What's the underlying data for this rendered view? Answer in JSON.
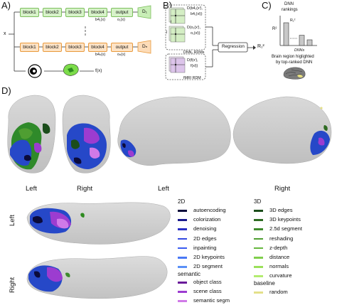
{
  "panels": {
    "a": "A)",
    "b": "B)",
    "c": "C)",
    "d": "D)"
  },
  "panel_a": {
    "input_label": "x",
    "green_blocks": [
      "block1",
      "block2",
      "block3",
      "block4",
      "output"
    ],
    "orange_blocks": [
      "block1",
      "block2",
      "block3",
      "block4",
      "output"
    ],
    "green_feature": "b4₁(x)",
    "green_output": "o₁(x)",
    "green_decoder": "D₁",
    "orange_feature": "b4ₙ(x)",
    "orange_output": "oₙ(x)",
    "orange_decoder": "Dₙ",
    "fmri_output": "f(x)"
  },
  "panel_b": {
    "rdm_top_1": "D(b4₁(xⁱ),",
    "rdm_top_2": "b4₁(xʲ))",
    "rdm_mid_1": "D(o₁(xⁱ),",
    "rdm_mid_2": "o₁(xʲ))",
    "dnn_caption": "DNN₁ RDMs",
    "fmri_1": "D(f(xⁱ),",
    "fmri_2": "f(xʲ))",
    "fmri_caption": "fMRI RDM",
    "regression_label": "Regression",
    "r2_output": "R₁²",
    "i_label": "i",
    "j_label": "j"
  },
  "panel_c": {
    "title_1": "DNN",
    "title_2": "rankings",
    "y_label": "R²",
    "bar_label": "R₁²",
    "x_label": "DNNs",
    "caption_1": "Brain region higlighted",
    "caption_2": "by top-ranked DNN",
    "bar_heights": [
      1.0,
      0.45,
      0.25
    ]
  },
  "panel_d": {
    "top_labels": [
      "Left",
      "Right",
      "Left",
      "Right"
    ],
    "side_labels": [
      "Left",
      "Right"
    ]
  },
  "legend": {
    "col1_head": "2D",
    "col1": [
      {
        "label": "autoencoding",
        "color": "#0b0b3b"
      },
      {
        "label": "colorization",
        "color": "#1a1a8c"
      },
      {
        "label": "denoising",
        "color": "#2a2fc4"
      },
      {
        "label": "2D edges",
        "color": "#3348e0"
      },
      {
        "label": "inpainting",
        "color": "#3a5cf0"
      },
      {
        "label": "2D keypoints",
        "color": "#4a78f5"
      },
      {
        "label": "2D segment",
        "color": "#5a90f7"
      }
    ],
    "col1b_head": "semantic",
    "col1b": [
      {
        "label": "object class",
        "color": "#6a1b9a"
      },
      {
        "label": "scene class",
        "color": "#9c3cd0"
      },
      {
        "label": "semantic segm",
        "color": "#d07ae8"
      }
    ],
    "col2_head": "3D",
    "col2": [
      {
        "label": "3D edges",
        "color": "#1b4d1b"
      },
      {
        "label": "3D keypoints",
        "color": "#2e6b22"
      },
      {
        "label": "2.5d segment",
        "color": "#3f8a2c"
      },
      {
        "label": "reshading",
        "color": "#4f9e32"
      },
      {
        "label": "z-depth",
        "color": "#66b83e"
      },
      {
        "label": "distance",
        "color": "#80cf4c"
      },
      {
        "label": "normals",
        "color": "#9be05a"
      },
      {
        "label": "curvature",
        "color": "#b3ec70"
      }
    ],
    "col2b_head": "baseline",
    "col2b": [
      {
        "label": "random",
        "color": "#e4e08a"
      }
    ]
  }
}
